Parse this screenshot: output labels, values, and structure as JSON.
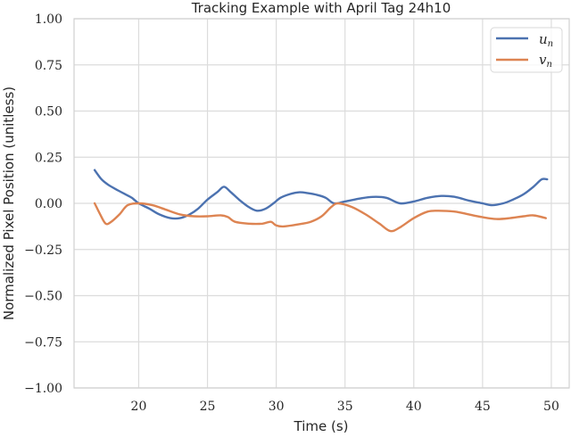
{
  "chart_data": {
    "type": "line",
    "title": "Tracking Example with April Tag 24h10",
    "xlabel": "Time (s)",
    "ylabel": "Normalized Pixel Position (unitless)",
    "xlim": [
      15.3,
      51.3
    ],
    "ylim": [
      -1.0,
      1.0
    ],
    "xticks": [
      20,
      25,
      30,
      35,
      40,
      45,
      50
    ],
    "yticks": [
      1.0,
      0.75,
      0.5,
      0.25,
      0.0,
      -0.25,
      -0.5,
      -0.75,
      -1.0
    ],
    "xtick_labels": [
      "20",
      "25",
      "30",
      "35",
      "40",
      "45",
      "50"
    ],
    "ytick_labels": [
      "1.00",
      "0.75",
      "0.50",
      "0.25",
      "0.00",
      "−0.25",
      "−0.50",
      "−0.75",
      "−1.00"
    ],
    "grid": true,
    "legend_position": "upper right",
    "series": [
      {
        "name": "u_n",
        "label_base": "u",
        "label_sub": "n",
        "color": "#4c72b0",
        "x": [
          16.8,
          17.3,
          17.8,
          18.5,
          19.0,
          19.5,
          20.0,
          20.8,
          21.5,
          22.3,
          23.0,
          23.7,
          24.3,
          25.0,
          25.7,
          26.2,
          26.7,
          27.3,
          28.0,
          28.6,
          29.2,
          29.8,
          30.3,
          31.0,
          31.7,
          32.3,
          33.0,
          33.6,
          34.2,
          35.0,
          36.0,
          37.0,
          38.0,
          39.0,
          40.0,
          41.0,
          42.0,
          43.0,
          44.0,
          45.0,
          45.7,
          46.5,
          47.2,
          48.0,
          48.7,
          49.3,
          49.7
        ],
        "values": [
          0.18,
          0.13,
          0.1,
          0.07,
          0.05,
          0.03,
          0.0,
          -0.03,
          -0.06,
          -0.08,
          -0.08,
          -0.06,
          -0.03,
          0.02,
          0.06,
          0.09,
          0.06,
          0.02,
          -0.02,
          -0.04,
          -0.03,
          0.0,
          0.03,
          0.05,
          0.06,
          0.055,
          0.045,
          0.03,
          0.0,
          0.01,
          0.025,
          0.035,
          0.03,
          0.0,
          0.01,
          0.03,
          0.04,
          0.035,
          0.015,
          0.0,
          -0.01,
          0.0,
          0.02,
          0.05,
          0.09,
          0.13,
          0.13
        ]
      },
      {
        "name": "v_n",
        "label_base": "v",
        "label_sub": "n",
        "color": "#dd8452",
        "x": [
          16.8,
          17.2,
          17.6,
          18.0,
          18.6,
          19.2,
          20.0,
          21.0,
          22.0,
          23.0,
          24.0,
          25.0,
          26.0,
          26.5,
          27.0,
          28.0,
          29.0,
          29.6,
          30.0,
          30.5,
          31.5,
          32.5,
          33.3,
          34.0,
          34.5,
          35.5,
          36.5,
          37.5,
          38.3,
          39.0,
          40.0,
          41.0,
          41.8,
          43.0,
          44.0,
          45.0,
          46.0,
          47.0,
          48.0,
          48.7,
          49.6
        ],
        "values": [
          0.0,
          -0.06,
          -0.11,
          -0.1,
          -0.06,
          -0.01,
          0.0,
          -0.01,
          -0.035,
          -0.06,
          -0.07,
          -0.07,
          -0.065,
          -0.075,
          -0.1,
          -0.11,
          -0.11,
          -0.1,
          -0.12,
          -0.125,
          -0.115,
          -0.1,
          -0.07,
          -0.02,
          0.0,
          -0.02,
          -0.06,
          -0.11,
          -0.15,
          -0.13,
          -0.08,
          -0.045,
          -0.04,
          -0.045,
          -0.06,
          -0.075,
          -0.085,
          -0.08,
          -0.07,
          -0.065,
          -0.08
        ]
      }
    ]
  }
}
